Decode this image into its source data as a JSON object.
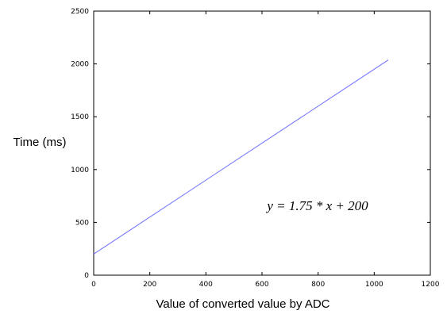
{
  "chart_data": {
    "type": "line",
    "xlabel": "Value of converted value by ADC",
    "ylabel": "Time (ms)",
    "xlim": [
      0,
      1200
    ],
    "ylim": [
      0,
      2500
    ],
    "x_ticks": [
      0,
      200,
      400,
      600,
      800,
      1000,
      1200
    ],
    "y_ticks": [
      0,
      500,
      1000,
      1500,
      2000,
      2500
    ],
    "x_tick_labels": [
      "0",
      "200",
      "400",
      "600",
      "800",
      "1000",
      "1200"
    ],
    "y_tick_labels": [
      "0",
      "500",
      "1000",
      "1500",
      "2000",
      "2500"
    ],
    "grid": false,
    "series": [
      {
        "x": [
          0,
          1050
        ],
        "y": [
          200,
          2037.5
        ],
        "color": "#7b7bff"
      }
    ],
    "annotation": "y = 1.75 * x + 200"
  }
}
